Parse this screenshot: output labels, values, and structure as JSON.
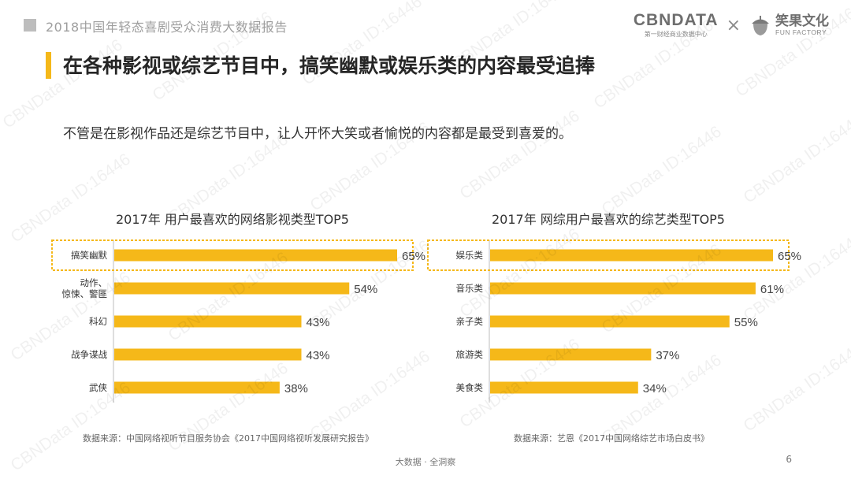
{
  "header": {
    "report_title": "2018中国年轻态喜剧受众消费大数据报告",
    "brand_name": "CBNDATA",
    "brand_sub": "第一财经商业数据中心",
    "times_sign": "×",
    "partner_name": "笑果文化",
    "partner_sub": "FUN FACTORY"
  },
  "headline": "在各种影视或综艺节目中，搞笑幽默或娱乐类的内容最受追捧",
  "subtitle": "不管是在影视作品还是综艺节目中，让人开怀大笑或者愉悦的内容都是最受到喜爱的。",
  "chart_data": [
    {
      "type": "bar",
      "orientation": "horizontal",
      "title": "2017年 用户最喜欢的网络影视类型TOP5",
      "categories": [
        "搞笑幽默",
        "动作、\n惊悚、警匪",
        "科幻",
        "战争谍战",
        "武侠"
      ],
      "values": [
        65,
        54,
        43,
        43,
        38
      ],
      "unit": "%",
      "highlight_index": 0,
      "xlim": [
        0,
        65
      ],
      "source": "数据来源：中国网络视听节目服务协会《2017中国网络视听发展研究报告》"
    },
    {
      "type": "bar",
      "orientation": "horizontal",
      "title": "2017年 网综用户最喜欢的综艺类型TOP5",
      "categories": [
        "娱乐类",
        "音乐类",
        "亲子类",
        "旅游类",
        "美食类"
      ],
      "values": [
        65,
        61,
        55,
        37,
        34
      ],
      "unit": "%",
      "highlight_index": 0,
      "xlim": [
        0,
        65
      ],
      "source": "数据来源：艺恩《2017中国网络综艺市场白皮书》"
    }
  ],
  "colors": {
    "accent": "#f5b819",
    "bar": "#f5b819",
    "highlight_border": "#f5b819",
    "axis": "#bdbdbd"
  },
  "footer": {
    "text": "大数据 · 全洞察",
    "page": "6"
  },
  "watermark": "CBNData ID:16446"
}
